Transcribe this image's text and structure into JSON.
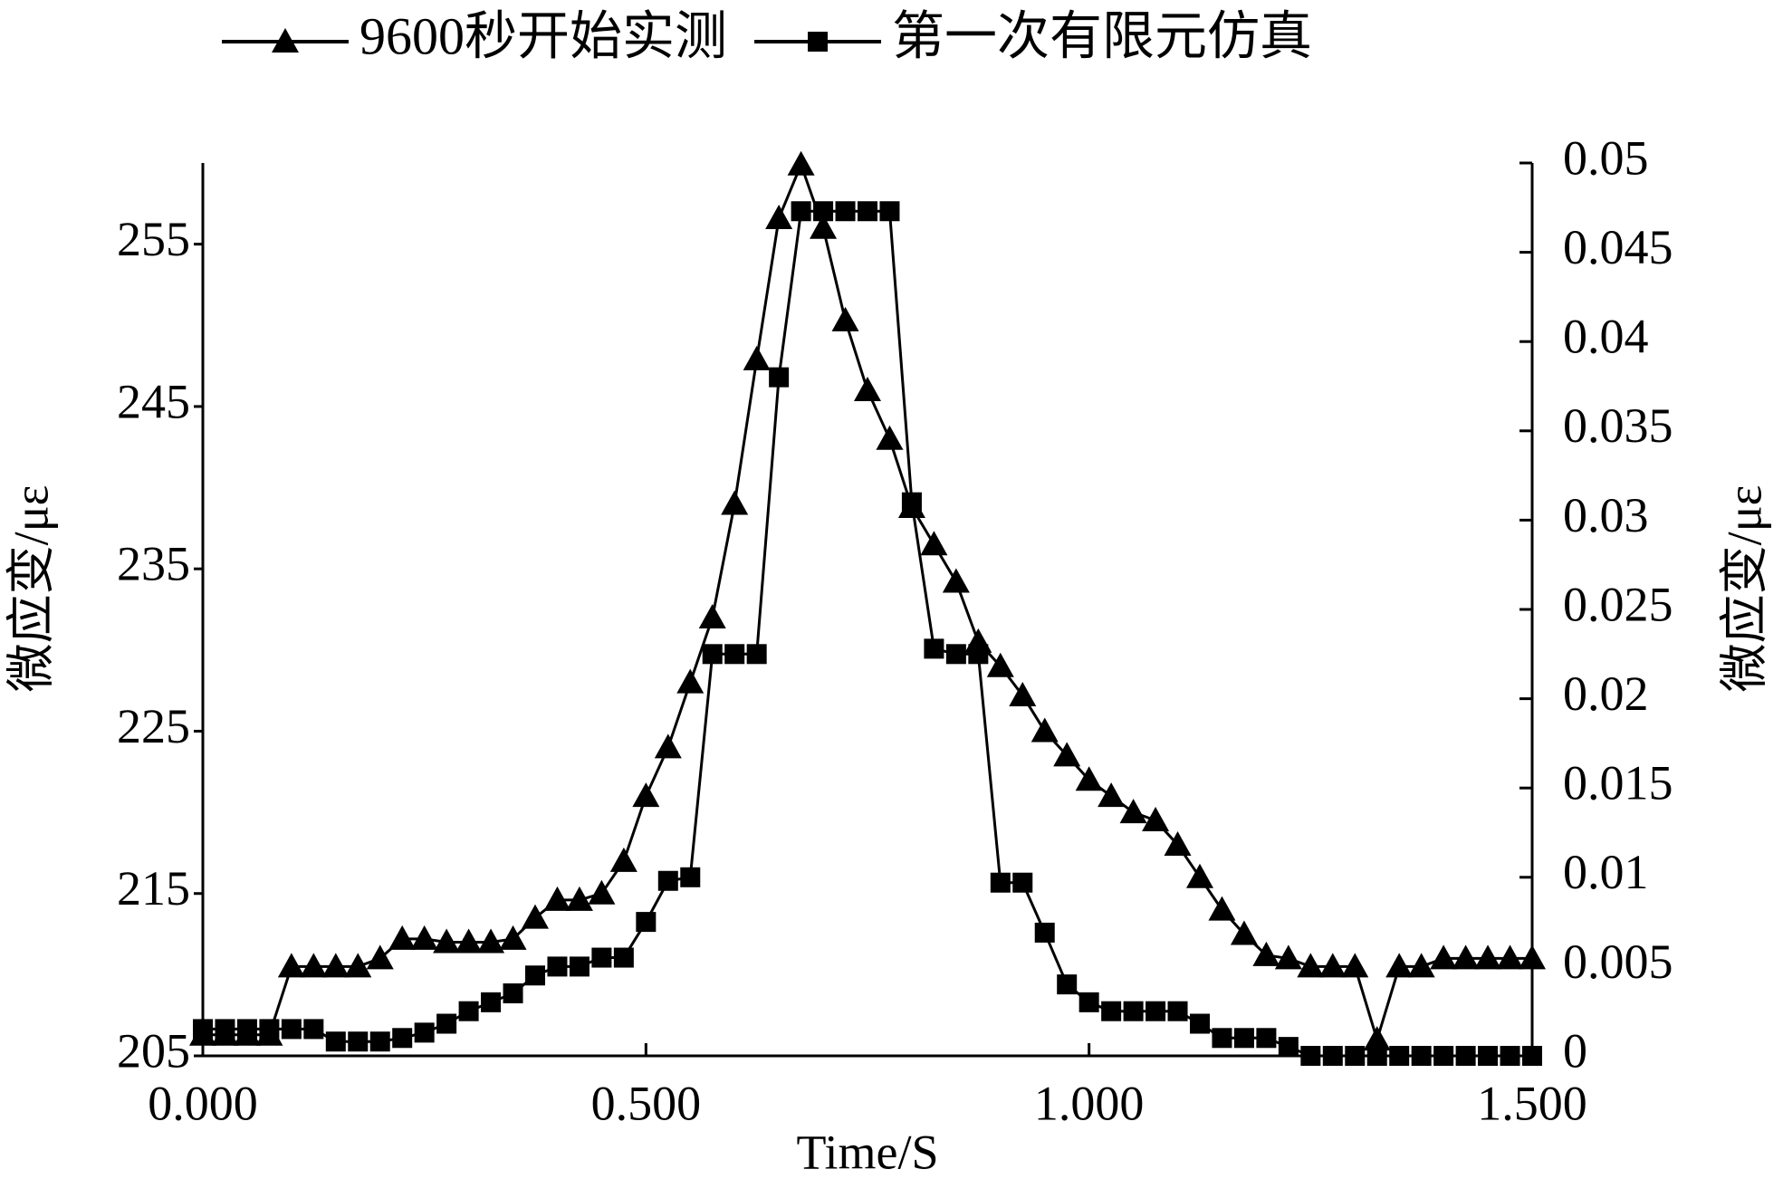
{
  "chart_data": {
    "type": "line",
    "x_label": "Time/S",
    "y_label": "微应变/με",
    "y2_label": "微应变/με",
    "x": [
      0,
      0.025,
      0.05,
      0.075,
      0.1,
      0.125,
      0.15,
      0.175,
      0.2,
      0.225,
      0.25,
      0.275,
      0.3,
      0.325,
      0.35,
      0.375,
      0.4,
      0.425,
      0.45,
      0.475,
      0.5,
      0.525,
      0.55,
      0.575,
      0.6,
      0.625,
      0.65,
      0.675,
      0.7,
      0.725,
      0.75,
      0.775,
      0.8,
      0.825,
      0.85,
      0.875,
      0.9,
      0.925,
      0.95,
      0.975,
      1.0,
      1.025,
      1.05,
      1.075,
      1.1,
      1.125,
      1.15,
      1.175,
      1.2,
      1.225,
      1.25,
      1.275,
      1.3,
      1.325,
      1.35,
      1.375,
      1.4,
      1.425,
      1.45,
      1.475,
      1.5
    ],
    "series": [
      {
        "name": "9600秒开始实测",
        "color": "#000000",
        "marker": "triangle",
        "values": [
          206.3,
          206.3,
          206.3,
          206.3,
          210.5,
          210.5,
          210.5,
          210.5,
          211,
          212.2,
          212.2,
          212,
          212,
          212,
          212.2,
          213.5,
          214.6,
          214.6,
          215,
          217,
          221,
          224,
          228,
          232,
          239,
          247.9,
          256.6,
          259.9,
          256,
          250.3,
          246,
          243,
          238.8,
          236.5,
          234.2,
          230.5,
          229,
          227.2,
          225,
          223.5,
          222,
          221,
          220,
          219.5,
          218,
          216,
          214,
          212.5,
          211.2,
          211,
          210.5,
          210.5,
          210.5,
          206,
          210.5,
          210.5,
          211,
          211,
          211,
          211,
          211
        ]
      },
      {
        "name": "第一次有限元仿真",
        "color": "#000000",
        "marker": "square",
        "axis": "y2",
        "values": [
          0.0015,
          0.0015,
          0.0015,
          0.0015,
          0.0015,
          0.0015,
          0.0008,
          0.0008,
          0.0008,
          0.001,
          0.0013,
          0.0018,
          0.0025,
          0.003,
          0.0035,
          0.0045,
          0.005,
          0.005,
          0.0055,
          0.0055,
          0.0075,
          0.0098,
          0.01,
          0.0225,
          0.0225,
          0.0225,
          0.038,
          0.0473,
          0.0473,
          0.0473,
          0.0473,
          0.0473,
          0.031,
          0.0228,
          0.0225,
          0.0225,
          0.0097,
          0.0097,
          0.0069,
          0.004,
          0.003,
          0.0025,
          0.0025,
          0.0025,
          0.0025,
          0.0018,
          0.001,
          0.001,
          0.001,
          0.0005,
          0,
          0,
          0,
          0,
          0,
          0,
          0,
          0,
          0,
          0,
          0
        ]
      }
    ],
    "xlim": [
      0,
      1.5
    ],
    "xticks": [
      {
        "value": 0,
        "label": "0.000"
      },
      {
        "value": 0.5,
        "label": "0.500"
      },
      {
        "value": 1.0,
        "label": "1.000"
      },
      {
        "value": 1.5,
        "label": "1.500"
      }
    ],
    "ylim": [
      205,
      260
    ],
    "yticks": [
      205,
      215,
      225,
      235,
      245,
      255
    ],
    "y2lim": [
      0,
      0.05
    ],
    "y2ticks": [
      0,
      0.005,
      0.01,
      0.015,
      0.02,
      0.025,
      0.03,
      0.035,
      0.04,
      0.045,
      0.05
    ],
    "legend": "top",
    "grid": false
  }
}
